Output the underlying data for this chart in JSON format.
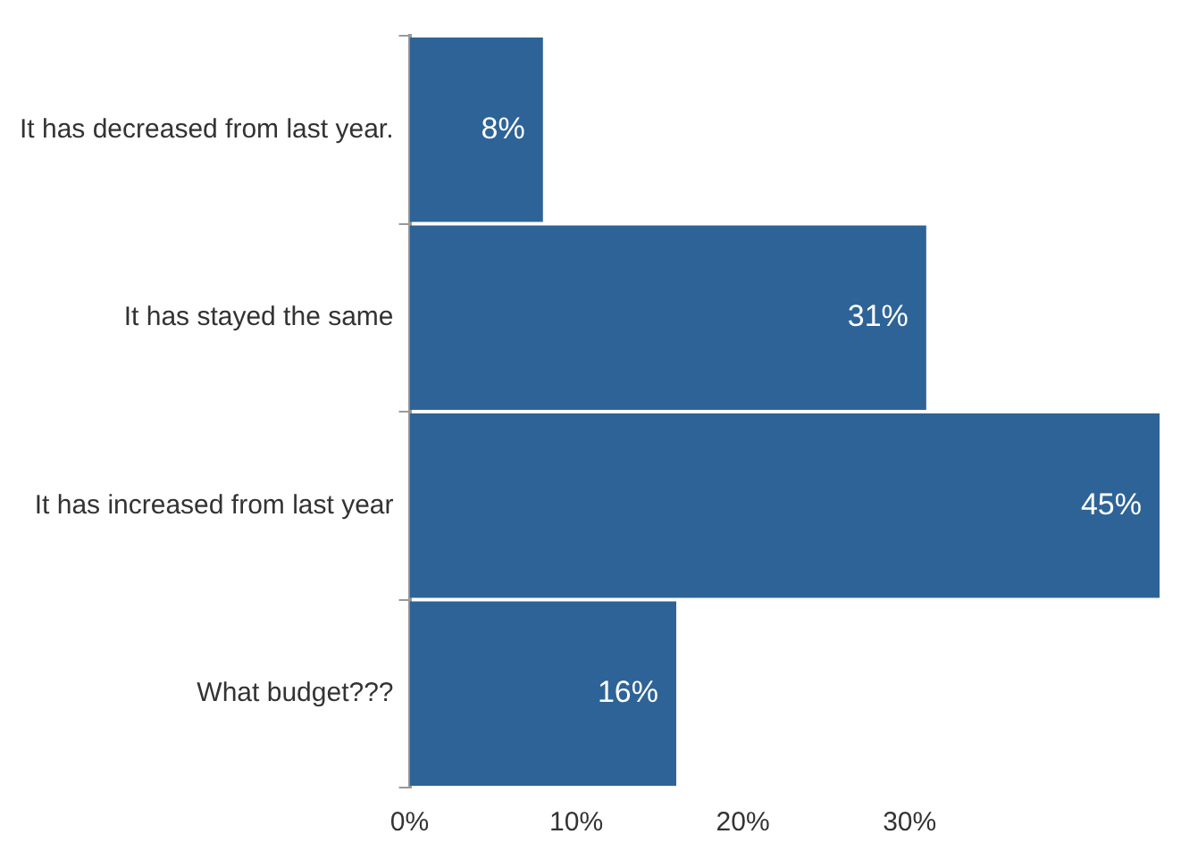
{
  "chart_data": {
    "type": "bar",
    "orientation": "horizontal",
    "categories": [
      "It has decreased from last year.",
      "It has stayed the same",
      "It has increased from last year",
      "What budget???"
    ],
    "values": [
      8,
      31,
      45,
      16
    ],
    "value_labels": [
      "8%",
      "31%",
      "45%",
      "16%"
    ],
    "color": "#2e6397",
    "xlim": [
      0,
      45
    ],
    "xticks": [
      {
        "value": 0,
        "label": "0%"
      },
      {
        "value": 10,
        "label": "10%"
      },
      {
        "value": 20,
        "label": "20%"
      },
      {
        "value": 30,
        "label": "30%"
      }
    ],
    "grid": false,
    "legend": false
  }
}
